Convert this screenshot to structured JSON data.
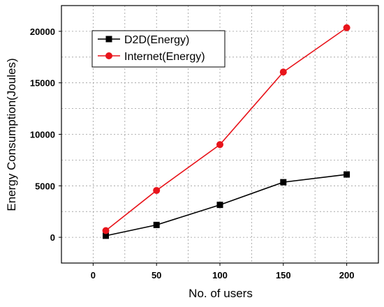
{
  "chart_data": {
    "type": "line",
    "xlabel": "No. of users",
    "ylabel": "Energy Consumption(Joules)",
    "x": [
      10,
      50,
      100,
      150,
      200
    ],
    "xticks": [
      0,
      50,
      100,
      150,
      200
    ],
    "yticks": [
      0,
      5000,
      10000,
      15000,
      20000
    ],
    "xlim": [
      -25,
      225
    ],
    "ylim": [
      -2500,
      22500
    ],
    "grid": true,
    "legend_position": "top-left",
    "series": [
      {
        "name": "D2D(Energy)",
        "values": [
          150,
          1200,
          3150,
          5350,
          6100
        ],
        "color": "#000000",
        "marker": "square"
      },
      {
        "name": "Internet(Energy)",
        "values": [
          650,
          4550,
          9000,
          16050,
          20350
        ],
        "color": "#e8141b",
        "marker": "circle"
      }
    ]
  }
}
